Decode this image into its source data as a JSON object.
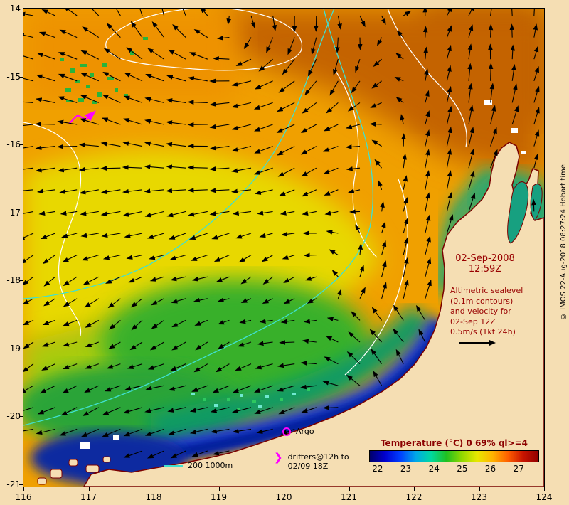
{
  "annotations": {
    "date_line1": "02-Sep-2008",
    "date_line2": "12:59Z",
    "altimetric_lines": [
      "Altimetric sealevel",
      "(0.1m contours)",
      "and velocity for",
      "02-Sep 12Z",
      "0.5m/s (1kt 24h)"
    ],
    "argo_label": "Argo",
    "drifters_lines": [
      "drifters@12h to",
      "02/09 18Z"
    ],
    "depth_scale_label": "200 1000m",
    "copyright": "© IMOS 22-Aug-2018 08:27:24 Hobart time"
  },
  "axes": {
    "lon_labels": [
      "116",
      "117",
      "118",
      "119",
      "120",
      "121",
      "122",
      "123",
      "124"
    ],
    "lat_labels": [
      "-14",
      "-15",
      "-16",
      "-17",
      "-18",
      "-19",
      "-20",
      "-21"
    ]
  },
  "colorbar": {
    "title": "Temperature (°C) 0 69% ql>=4",
    "tick_labels": [
      "22",
      "23",
      "24",
      "25",
      "26",
      "27"
    ],
    "tick_values": [
      22,
      23,
      24,
      25,
      26,
      27
    ],
    "range": [
      21.7,
      27.7
    ],
    "gradient": [
      "#00006a",
      "#0000d0",
      "#0040ff",
      "#00a8e8",
      "#00d8a0",
      "#20c020",
      "#90d800",
      "#e8e800",
      "#ffb400",
      "#ff6000",
      "#c81400",
      "#900000"
    ]
  },
  "colors": {
    "background": "#f5deb3",
    "annotation_red": "#990000",
    "coastline_red": "#7a0000",
    "marker_magenta": "#ff00ff",
    "bathymetry_cyan": "#40e0d0",
    "sealevel_contour_white": "#ffffff",
    "vector_black": "#000000"
  }
}
